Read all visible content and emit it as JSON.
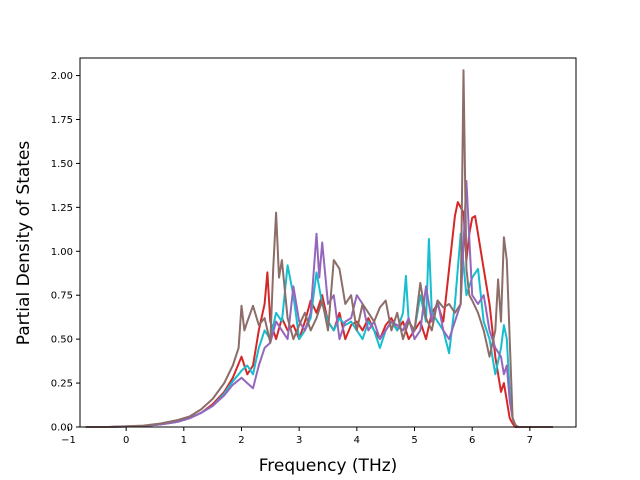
{
  "chart_data": {
    "type": "line",
    "title": "",
    "xlabel": "Frequency (THz)",
    "ylabel": "Partial Density of States",
    "xlim": [
      -0.8,
      7.8
    ],
    "ylim": [
      0.0,
      2.1
    ],
    "xticks": [
      -1,
      0,
      1,
      2,
      3,
      4,
      5,
      6,
      7
    ],
    "xtick_labels": [
      "−1",
      "0",
      "1",
      "2",
      "3",
      "4",
      "5",
      "6",
      "7"
    ],
    "yticks": [
      0.0,
      0.25,
      0.5,
      0.75,
      1.0,
      1.25,
      1.5,
      1.75,
      2.0
    ],
    "ytick_labels": [
      "0.00",
      "0.25",
      "0.50",
      "0.75",
      "1.00",
      "1.25",
      "1.50",
      "1.75",
      "2.00"
    ],
    "grid": false,
    "legend": "none",
    "series": [
      {
        "color": "#d62728",
        "x": [
          -0.7,
          -0.3,
          0,
          0.3,
          0.6,
          0.9,
          1.1,
          1.3,
          1.5,
          1.7,
          1.85,
          2.0,
          2.1,
          2.2,
          2.3,
          2.4,
          2.45,
          2.5,
          2.6,
          2.7,
          2.8,
          2.9,
          3.0,
          3.1,
          3.2,
          3.3,
          3.4,
          3.5,
          3.6,
          3.7,
          3.8,
          3.9,
          4.0,
          4.1,
          4.2,
          4.3,
          4.4,
          4.5,
          4.6,
          4.7,
          4.8,
          4.9,
          5.0,
          5.1,
          5.2,
          5.3,
          5.4,
          5.5,
          5.6,
          5.7,
          5.75,
          5.8,
          5.85,
          5.9,
          5.95,
          6.0,
          6.05,
          6.1,
          6.2,
          6.3,
          6.4,
          6.5,
          6.55,
          6.6,
          6.65,
          6.7,
          6.75,
          6.8,
          7.0,
          7.4
        ],
        "y": [
          0,
          0,
          0.003,
          0.006,
          0.015,
          0.03,
          0.05,
          0.08,
          0.13,
          0.2,
          0.28,
          0.4,
          0.3,
          0.35,
          0.55,
          0.7,
          0.88,
          0.6,
          0.5,
          0.62,
          0.55,
          0.58,
          0.5,
          0.6,
          0.72,
          0.65,
          0.75,
          0.6,
          0.55,
          0.65,
          0.5,
          0.58,
          0.6,
          0.55,
          0.62,
          0.55,
          0.5,
          0.58,
          0.62,
          0.55,
          0.6,
          0.5,
          0.55,
          0.6,
          0.5,
          0.65,
          0.7,
          0.6,
          0.9,
          1.2,
          1.28,
          1.25,
          1.22,
          0.95,
          1.1,
          1.19,
          1.2,
          1.1,
          0.9,
          0.7,
          0.4,
          0.2,
          0.25,
          0.15,
          0.05,
          0.02,
          0,
          0,
          0,
          0
        ]
      },
      {
        "color": "#17becf",
        "x": [
          -0.7,
          -0.3,
          0,
          0.3,
          0.6,
          0.9,
          1.1,
          1.3,
          1.5,
          1.7,
          1.85,
          2.0,
          2.1,
          2.2,
          2.3,
          2.4,
          2.5,
          2.6,
          2.7,
          2.8,
          2.9,
          3.0,
          3.1,
          3.2,
          3.3,
          3.4,
          3.5,
          3.6,
          3.7,
          3.8,
          3.9,
          4.0,
          4.1,
          4.2,
          4.3,
          4.4,
          4.5,
          4.6,
          4.7,
          4.8,
          4.85,
          4.9,
          5.0,
          5.1,
          5.2,
          5.25,
          5.3,
          5.4,
          5.5,
          5.6,
          5.7,
          5.8,
          5.9,
          6.0,
          6.1,
          6.2,
          6.3,
          6.4,
          6.5,
          6.55,
          6.6,
          6.65,
          6.7,
          6.75,
          6.8,
          7.0,
          7.4
        ],
        "y": [
          0,
          0,
          0.003,
          0.006,
          0.015,
          0.03,
          0.05,
          0.08,
          0.12,
          0.19,
          0.26,
          0.32,
          0.35,
          0.3,
          0.45,
          0.55,
          0.5,
          0.65,
          0.6,
          0.92,
          0.75,
          0.5,
          0.55,
          0.62,
          0.88,
          0.7,
          0.6,
          0.55,
          0.62,
          0.58,
          0.6,
          0.55,
          0.5,
          0.6,
          0.55,
          0.45,
          0.55,
          0.6,
          0.55,
          0.65,
          0.86,
          0.6,
          0.55,
          0.75,
          0.6,
          1.07,
          0.65,
          0.6,
          0.55,
          0.42,
          0.7,
          1.1,
          0.75,
          0.85,
          0.9,
          0.6,
          0.5,
          0.3,
          0.45,
          0.58,
          0.5,
          0.2,
          0.05,
          0.01,
          0,
          0,
          0
        ]
      },
      {
        "color": "#9467bd",
        "x": [
          -0.7,
          -0.3,
          0,
          0.3,
          0.6,
          0.9,
          1.1,
          1.3,
          1.5,
          1.7,
          1.85,
          2.0,
          2.1,
          2.2,
          2.3,
          2.4,
          2.5,
          2.6,
          2.7,
          2.8,
          2.9,
          3.0,
          3.1,
          3.2,
          3.3,
          3.35,
          3.4,
          3.5,
          3.6,
          3.7,
          3.8,
          3.9,
          4.0,
          4.1,
          4.2,
          4.3,
          4.4,
          4.5,
          4.6,
          4.7,
          4.8,
          4.9,
          5.0,
          5.1,
          5.2,
          5.3,
          5.4,
          5.5,
          5.6,
          5.7,
          5.8,
          5.9,
          6.0,
          6.1,
          6.2,
          6.3,
          6.4,
          6.5,
          6.55,
          6.6,
          6.65,
          6.7,
          6.75,
          6.8,
          7.0,
          7.4
        ],
        "y": [
          0,
          0,
          0.003,
          0.006,
          0.015,
          0.03,
          0.05,
          0.08,
          0.12,
          0.18,
          0.24,
          0.28,
          0.25,
          0.22,
          0.35,
          0.45,
          0.48,
          0.6,
          0.55,
          0.5,
          0.8,
          0.6,
          0.55,
          0.65,
          1.1,
          0.85,
          1.05,
          0.7,
          0.75,
          0.5,
          0.6,
          0.62,
          0.75,
          0.7,
          0.55,
          0.6,
          0.5,
          0.55,
          0.6,
          0.58,
          0.55,
          0.62,
          0.5,
          0.55,
          0.8,
          0.6,
          0.72,
          0.55,
          0.5,
          0.6,
          0.7,
          1.4,
          0.75,
          0.7,
          0.75,
          0.55,
          0.45,
          0.4,
          0.3,
          0.35,
          0.15,
          0.05,
          0.01,
          0,
          0,
          0
        ]
      },
      {
        "color": "#8c6d68",
        "x": [
          -0.7,
          -0.3,
          0,
          0.3,
          0.6,
          0.9,
          1.1,
          1.3,
          1.5,
          1.7,
          1.85,
          1.95,
          2.0,
          2.05,
          2.1,
          2.2,
          2.3,
          2.4,
          2.5,
          2.55,
          2.6,
          2.65,
          2.7,
          2.8,
          2.9,
          3.0,
          3.1,
          3.2,
          3.3,
          3.4,
          3.5,
          3.6,
          3.7,
          3.8,
          3.9,
          4.0,
          4.1,
          4.2,
          4.3,
          4.4,
          4.5,
          4.6,
          4.7,
          4.8,
          4.9,
          5.0,
          5.1,
          5.2,
          5.3,
          5.4,
          5.5,
          5.6,
          5.7,
          5.8,
          5.85,
          5.9,
          5.95,
          6.0,
          6.1,
          6.2,
          6.3,
          6.4,
          6.45,
          6.5,
          6.55,
          6.6,
          6.65,
          6.7,
          6.75,
          6.8,
          7.0,
          7.4
        ],
        "y": [
          0,
          0,
          0.004,
          0.008,
          0.02,
          0.04,
          0.06,
          0.1,
          0.16,
          0.25,
          0.35,
          0.45,
          0.69,
          0.55,
          0.6,
          0.69,
          0.58,
          0.62,
          0.48,
          0.9,
          1.22,
          0.85,
          0.95,
          0.62,
          0.5,
          0.58,
          0.65,
          0.55,
          0.62,
          0.72,
          0.55,
          0.95,
          0.9,
          0.7,
          0.75,
          0.55,
          0.7,
          0.65,
          0.6,
          0.68,
          0.72,
          0.55,
          0.65,
          0.5,
          0.6,
          0.55,
          0.82,
          0.62,
          0.55,
          0.72,
          0.68,
          0.7,
          0.65,
          0.7,
          2.03,
          0.9,
          0.75,
          0.72,
          0.65,
          0.55,
          0.4,
          0.55,
          0.84,
          0.6,
          1.08,
          0.95,
          0.5,
          0.05,
          0.01,
          0,
          0,
          0
        ]
      }
    ]
  }
}
